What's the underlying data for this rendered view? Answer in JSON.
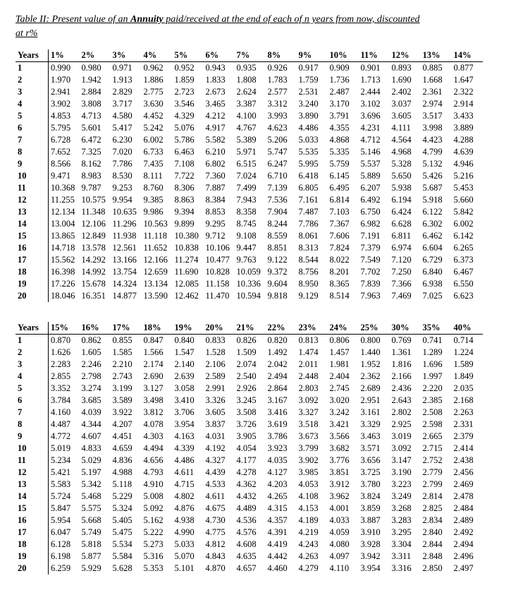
{
  "title_prefix": "Table II: Present value of an ",
  "title_bold": "Annuity",
  "title_suffix": " paid/received at the end of each of n years from now, discounted",
  "subtitle": "at r%",
  "years_label": "Years",
  "table1": {
    "headers": [
      "1%",
      "2%",
      "3%",
      "4%",
      "5%",
      "6%",
      "7%",
      "8%",
      "9%",
      "10%",
      "11%",
      "12%",
      "13%",
      "14%"
    ],
    "years": [
      "1",
      "2",
      "3",
      "4",
      "5",
      "6",
      "7",
      "8",
      "9",
      "10",
      "11",
      "12",
      "13",
      "14",
      "15",
      "16",
      "17",
      "18",
      "19",
      "20"
    ],
    "rows": [
      [
        "0.990",
        "0.980",
        "0.971",
        "0.962",
        "0.952",
        "0.943",
        "0.935",
        "0.926",
        "0.917",
        "0.909",
        "0.901",
        "0.893",
        "0.885",
        "0.877"
      ],
      [
        "1.970",
        "1.942",
        "1.913",
        "1.886",
        "1.859",
        "1.833",
        "1.808",
        "1.783",
        "1.759",
        "1.736",
        "1.713",
        "1.690",
        "1.668",
        "1.647"
      ],
      [
        "2.941",
        "2.884",
        "2.829",
        "2.775",
        "2.723",
        "2.673",
        "2.624",
        "2.577",
        "2.531",
        "2.487",
        "2.444",
        "2.402",
        "2.361",
        "2.322"
      ],
      [
        "3.902",
        "3.808",
        "3.717",
        "3.630",
        "3.546",
        "3.465",
        "3.387",
        "3.312",
        "3.240",
        "3.170",
        "3.102",
        "3.037",
        "2.974",
        "2.914"
      ],
      [
        "4.853",
        "4.713",
        "4.580",
        "4.452",
        "4.329",
        "4.212",
        "4.100",
        "3.993",
        "3.890",
        "3.791",
        "3.696",
        "3.605",
        "3.517",
        "3.433"
      ],
      [
        "5.795",
        "5.601",
        "5.417",
        "5.242",
        "5.076",
        "4.917",
        "4.767",
        "4.623",
        "4.486",
        "4.355",
        "4.231",
        "4.111",
        "3.998",
        "3.889"
      ],
      [
        "6.728",
        "6.472",
        "6.230",
        "6.002",
        "5.786",
        "5.582",
        "5.389",
        "5.206",
        "5.033",
        "4.868",
        "4.712",
        "4.564",
        "4.423",
        "4.288"
      ],
      [
        "7.652",
        "7.325",
        "7.020",
        "6.733",
        "6.463",
        "6.210",
        "5.971",
        "5.747",
        "5.535",
        "5.335",
        "5.146",
        "4.968",
        "4.799",
        "4.639"
      ],
      [
        "8.566",
        "8.162",
        "7.786",
        "7.435",
        "7.108",
        "6.802",
        "6.515",
        "6.247",
        "5.995",
        "5.759",
        "5.537",
        "5.328",
        "5.132",
        "4.946"
      ],
      [
        "9.471",
        "8.983",
        "8.530",
        "8.111",
        "7.722",
        "7.360",
        "7.024",
        "6.710",
        "6.418",
        "6.145",
        "5.889",
        "5.650",
        "5.426",
        "5.216"
      ],
      [
        "10.368",
        "9.787",
        "9.253",
        "8.760",
        "8.306",
        "7.887",
        "7.499",
        "7.139",
        "6.805",
        "6.495",
        "6.207",
        "5.938",
        "5.687",
        "5.453"
      ],
      [
        "11.255",
        "10.575",
        "9.954",
        "9.385",
        "8.863",
        "8.384",
        "7.943",
        "7.536",
        "7.161",
        "6.814",
        "6.492",
        "6.194",
        "5.918",
        "5.660"
      ],
      [
        "12.134",
        "11.348",
        "10.635",
        "9.986",
        "9.394",
        "8.853",
        "8.358",
        "7.904",
        "7.487",
        "7.103",
        "6.750",
        "6.424",
        "6.122",
        "5.842"
      ],
      [
        "13.004",
        "12.106",
        "11.296",
        "10.563",
        "9.899",
        "9.295",
        "8.745",
        "8.244",
        "7.786",
        "7.367",
        "6.982",
        "6.628",
        "6.302",
        "6.002"
      ],
      [
        "13.865",
        "12.849",
        "11.938",
        "11.118",
        "10.380",
        "9.712",
        "9.108",
        "8.559",
        "8.061",
        "7.606",
        "7.191",
        "6.811",
        "6.462",
        "6.142"
      ],
      [
        "14.718",
        "13.578",
        "12.561",
        "11.652",
        "10.838",
        "10.106",
        "9.447",
        "8.851",
        "8.313",
        "7.824",
        "7.379",
        "6.974",
        "6.604",
        "6.265"
      ],
      [
        "15.562",
        "14.292",
        "13.166",
        "12.166",
        "11.274",
        "10.477",
        "9.763",
        "9.122",
        "8.544",
        "8.022",
        "7.549",
        "7.120",
        "6.729",
        "6.373"
      ],
      [
        "16.398",
        "14.992",
        "13.754",
        "12.659",
        "11.690",
        "10.828",
        "10.059",
        "9.372",
        "8.756",
        "8.201",
        "7.702",
        "7.250",
        "6.840",
        "6.467"
      ],
      [
        "17.226",
        "15.678",
        "14.324",
        "13.134",
        "12.085",
        "11.158",
        "10.336",
        "9.604",
        "8.950",
        "8.365",
        "7.839",
        "7.366",
        "6.938",
        "6.550"
      ],
      [
        "18.046",
        "16.351",
        "14.877",
        "13.590",
        "12.462",
        "11.470",
        "10.594",
        "9.818",
        "9.129",
        "8.514",
        "7.963",
        "7.469",
        "7.025",
        "6.623"
      ]
    ]
  },
  "table2": {
    "headers": [
      "15%",
      "16%",
      "17%",
      "18%",
      "19%",
      "20%",
      "21%",
      "22%",
      "23%",
      "24%",
      "25%",
      "30%",
      "35%",
      "40%"
    ],
    "years": [
      "1",
      "2",
      "3",
      "4",
      "5",
      "6",
      "7",
      "8",
      "9",
      "10",
      "11",
      "12",
      "13",
      "14",
      "15",
      "16",
      "17",
      "18",
      "19",
      "20"
    ],
    "rows": [
      [
        "0.870",
        "0.862",
        "0.855",
        "0.847",
        "0.840",
        "0.833",
        "0.826",
        "0.820",
        "0.813",
        "0.806",
        "0.800",
        "0.769",
        "0.741",
        "0.714"
      ],
      [
        "1.626",
        "1.605",
        "1.585",
        "1.566",
        "1.547",
        "1.528",
        "1.509",
        "1.492",
        "1.474",
        "1.457",
        "1.440",
        "1.361",
        "1.289",
        "1.224"
      ],
      [
        "2.283",
        "2.246",
        "2.210",
        "2.174",
        "2.140",
        "2.106",
        "2.074",
        "2.042",
        "2.011",
        "1.981",
        "1.952",
        "1.816",
        "1.696",
        "1.589"
      ],
      [
        "2.855",
        "2.798",
        "2.743",
        "2.690",
        "2.639",
        "2.589",
        "2.540",
        "2.494",
        "2.448",
        "2.404",
        "2.362",
        "2.166",
        "1.997",
        "1.849"
      ],
      [
        "3.352",
        "3.274",
        "3.199",
        "3.127",
        "3.058",
        "2.991",
        "2.926",
        "2.864",
        "2.803",
        "2.745",
        "2.689",
        "2.436",
        "2.220",
        "2.035"
      ],
      [
        "3.784",
        "3.685",
        "3.589",
        "3.498",
        "3.410",
        "3.326",
        "3.245",
        "3.167",
        "3.092",
        "3.020",
        "2.951",
        "2.643",
        "2.385",
        "2.168"
      ],
      [
        "4.160",
        "4.039",
        "3.922",
        "3.812",
        "3.706",
        "3.605",
        "3.508",
        "3.416",
        "3.327",
        "3.242",
        "3.161",
        "2.802",
        "2.508",
        "2.263"
      ],
      [
        "4.487",
        "4.344",
        "4.207",
        "4.078",
        "3.954",
        "3.837",
        "3.726",
        "3.619",
        "3.518",
        "3.421",
        "3.329",
        "2.925",
        "2.598",
        "2.331"
      ],
      [
        "4.772",
        "4.607",
        "4.451",
        "4.303",
        "4.163",
        "4.031",
        "3.905",
        "3.786",
        "3.673",
        "3.566",
        "3.463",
        "3.019",
        "2.665",
        "2.379"
      ],
      [
        "5.019",
        "4.833",
        "4.659",
        "4.494",
        "4.339",
        "4.192",
        "4.054",
        "3.923",
        "3.799",
        "3.682",
        "3.571",
        "3.092",
        "2.715",
        "2.414"
      ],
      [
        "5.234",
        "5.029",
        "4.836",
        "4.656",
        "4.486",
        "4.327",
        "4.177",
        "4.035",
        "3.902",
        "3.776",
        "3.656",
        "3.147",
        "2.752",
        "2.438"
      ],
      [
        "5.421",
        "5.197",
        "4.988",
        "4.793",
        "4.611",
        "4.439",
        "4.278",
        "4.127",
        "3.985",
        "3.851",
        "3.725",
        "3.190",
        "2.779",
        "2.456"
      ],
      [
        "5.583",
        "5.342",
        "5.118",
        "4.910",
        "4.715",
        "4.533",
        "4.362",
        "4.203",
        "4.053",
        "3.912",
        "3.780",
        "3.223",
        "2.799",
        "2.469"
      ],
      [
        "5.724",
        "5.468",
        "5.229",
        "5.008",
        "4.802",
        "4.611",
        "4.432",
        "4.265",
        "4.108",
        "3.962",
        "3.824",
        "3.249",
        "2.814",
        "2.478"
      ],
      [
        "5.847",
        "5.575",
        "5.324",
        "5.092",
        "4.876",
        "4.675",
        "4.489",
        "4.315",
        "4.153",
        "4.001",
        "3.859",
        "3.268",
        "2.825",
        "2.484"
      ],
      [
        "5.954",
        "5.668",
        "5.405",
        "5.162",
        "4.938",
        "4.730",
        "4.536",
        "4.357",
        "4.189",
        "4.033",
        "3.887",
        "3.283",
        "2.834",
        "2.489"
      ],
      [
        "6.047",
        "5.749",
        "5.475",
        "5.222",
        "4.990",
        "4.775",
        "4.576",
        "4.391",
        "4.219",
        "4.059",
        "3.910",
        "3.295",
        "2.840",
        "2.492"
      ],
      [
        "6.128",
        "5.818",
        "5.534",
        "5.273",
        "5.033",
        "4.812",
        "4.608",
        "4.419",
        "4.243",
        "4.080",
        "3.928",
        "3.304",
        "2.844",
        "2.494"
      ],
      [
        "6.198",
        "5.877",
        "5.584",
        "5.316",
        "5.070",
        "4.843",
        "4.635",
        "4.442",
        "4.263",
        "4.097",
        "3.942",
        "3.311",
        "2.848",
        "2.496"
      ],
      [
        "6.259",
        "5.929",
        "5.628",
        "5.353",
        "5.101",
        "4.870",
        "4.657",
        "4.460",
        "4.279",
        "4.110",
        "3.954",
        "3.316",
        "2.850",
        "2.497"
      ]
    ]
  }
}
